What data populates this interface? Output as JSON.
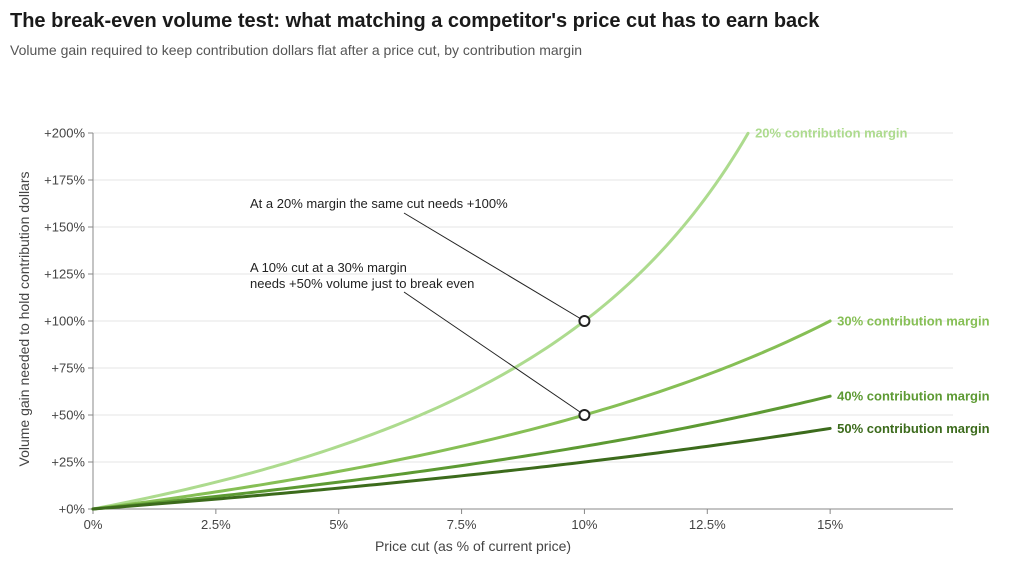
{
  "title": "The break-even volume test: what matching a competitor's price cut has to earn back",
  "subtitle": "Volume gain required to keep contribution dollars flat after a price cut, by contribution margin",
  "chart_data": {
    "type": "line",
    "xlabel": "Price cut (as % of current price)",
    "ylabel": "Volume gain needed to hold contribution dollars",
    "xlim": [
      0,
      17.5
    ],
    "ylim": [
      0,
      200
    ],
    "x_ticks": [
      {
        "value": 0,
        "label": "0%"
      },
      {
        "value": 2.5,
        "label": "2.5%"
      },
      {
        "value": 5,
        "label": "5%"
      },
      {
        "value": 7.5,
        "label": "7.5%"
      },
      {
        "value": 10,
        "label": "10%"
      },
      {
        "value": 12.5,
        "label": "12.5%"
      },
      {
        "value": 15,
        "label": "15%"
      }
    ],
    "y_ticks": [
      {
        "value": 0,
        "label": "+0%"
      },
      {
        "value": 25,
        "label": "+25%"
      },
      {
        "value": 50,
        "label": "+50%"
      },
      {
        "value": 75,
        "label": "+75%"
      },
      {
        "value": 100,
        "label": "+100%"
      },
      {
        "value": 125,
        "label": "+125%"
      },
      {
        "value": 150,
        "label": "+150%"
      },
      {
        "value": 175,
        "label": "+175%"
      },
      {
        "value": 200,
        "label": "+200%"
      }
    ],
    "grid": true,
    "series": [
      {
        "name": "20% contribution margin",
        "margin": 20,
        "color": "#addb8e",
        "x": [
          0,
          2.5,
          5,
          7.5,
          10,
          12.5,
          13.33
        ],
        "y": [
          0,
          14.3,
          33.3,
          60.0,
          100.0,
          166.7,
          200.0
        ]
      },
      {
        "name": "30% contribution margin",
        "margin": 30,
        "color": "#86bf55",
        "x": [
          0,
          2.5,
          5,
          7.5,
          10,
          12.5,
          15
        ],
        "y": [
          0,
          9.1,
          20.0,
          33.3,
          50.0,
          71.4,
          100.0
        ]
      },
      {
        "name": "40% contribution margin",
        "margin": 40,
        "color": "#5d9a33",
        "x": [
          0,
          2.5,
          5,
          7.5,
          10,
          12.5,
          15
        ],
        "y": [
          0,
          6.7,
          14.3,
          23.1,
          33.3,
          45.5,
          60.0
        ]
      },
      {
        "name": "50% contribution margin",
        "margin": 50,
        "color": "#3c6b1c",
        "x": [
          0,
          2.5,
          5,
          7.5,
          10,
          12.5,
          15
        ],
        "y": [
          0,
          5.3,
          11.1,
          17.6,
          25.0,
          33.3,
          42.9
        ]
      }
    ],
    "annotations": [
      {
        "lines": [
          "At a 20% margin the same cut needs +100%"
        ],
        "point": {
          "x": 10,
          "y": 100
        }
      },
      {
        "lines": [
          "A 10% cut at a 30% margin",
          "needs +50% volume just to break even"
        ],
        "point": {
          "x": 10,
          "y": 50
        }
      }
    ]
  }
}
